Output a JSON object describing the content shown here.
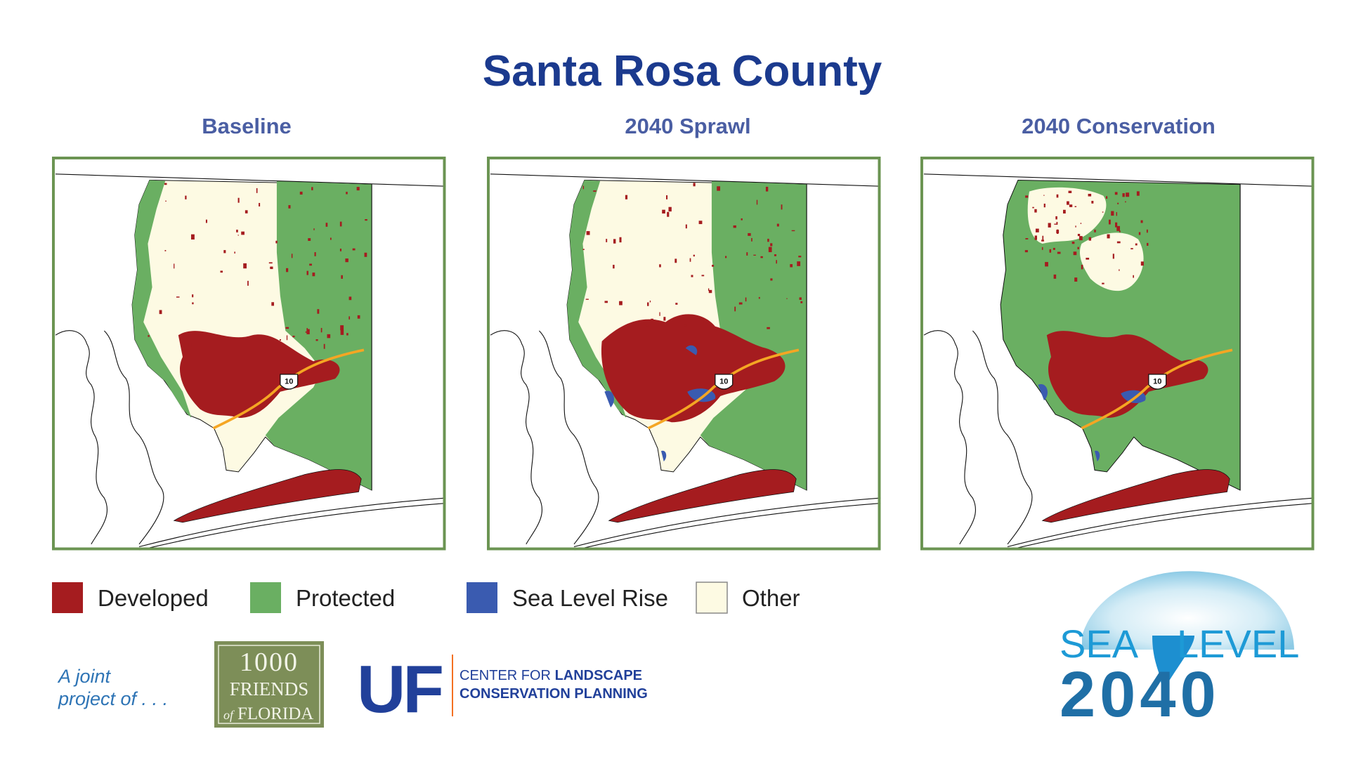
{
  "title": "Santa Rosa County",
  "panels": [
    {
      "title": "Baseline",
      "highway": "10"
    },
    {
      "title": "2040 Sprawl",
      "highway": "10"
    },
    {
      "title": "2040 Conservation",
      "highway": "10"
    }
  ],
  "legend": [
    {
      "label": "Developed",
      "color": "#a51c1f"
    },
    {
      "label": "Protected",
      "color": "#6aaf62"
    },
    {
      "label": "Sea Level Rise",
      "color": "#3a5bb0"
    },
    {
      "label": "Other",
      "color": "#fdfae3"
    }
  ],
  "footer": {
    "joint": [
      "A joint",
      "project of . . ."
    ],
    "friends": {
      "number": "1000",
      "name": "FRIENDS",
      "of": "of",
      "state": "FLORIDA"
    },
    "uf": {
      "mark": "UF",
      "line1": [
        "CENTER FOR",
        "LANDSCAPE"
      ],
      "line2": "CONSERVATION PLANNING"
    },
    "sea_level": {
      "word1": "SEA",
      "word2": "LEVEL",
      "year": "2040"
    }
  }
}
